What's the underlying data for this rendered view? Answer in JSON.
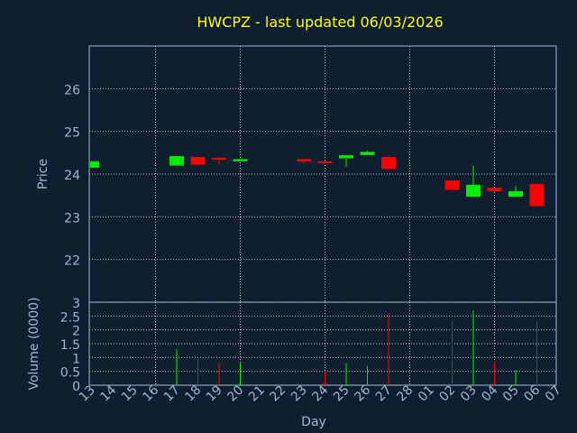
{
  "title": "HWCPZ - last updated 06/03/2026",
  "colors": {
    "background": "#0f1f30",
    "title": "#ffff00",
    "axis": "#9fb7d0",
    "up": "#00ee00",
    "down": "#ff0000"
  },
  "chart_data": [
    {
      "type": "candlestick",
      "ylabel": "Price",
      "ylim": [
        21,
        27
      ],
      "yticks": [
        "22",
        "23",
        "24",
        "25",
        "26"
      ],
      "grid": true,
      "x_labels": [
        "13",
        "14",
        "15",
        "16",
        "17",
        "18",
        "19",
        "20",
        "21",
        "22",
        "23",
        "24",
        "25",
        "26",
        "27",
        "28",
        "01",
        "02",
        "03",
        "04",
        "05",
        "06",
        "07"
      ],
      "candles": [
        {
          "x": 0,
          "open": 24.15,
          "close": 24.3,
          "high": 24.3,
          "low": 24.15
        },
        {
          "x": 4,
          "open": 24.2,
          "close": 24.42,
          "high": 24.42,
          "low": 24.2
        },
        {
          "x": 5,
          "open": 24.4,
          "close": 24.22,
          "high": 24.4,
          "low": 24.22
        },
        {
          "x": 6,
          "open": 24.38,
          "close": 24.35,
          "high": 24.38,
          "low": 24.22
        },
        {
          "x": 7,
          "open": 24.3,
          "close": 24.35,
          "high": 24.35,
          "low": 24.3
        },
        {
          "x": 10,
          "open": 24.35,
          "close": 24.3,
          "high": 24.35,
          "low": 24.25
        },
        {
          "x": 11,
          "open": 24.3,
          "close": 24.26,
          "high": 24.3,
          "low": 24.26
        },
        {
          "x": 12,
          "open": 24.37,
          "close": 24.44,
          "high": 24.44,
          "low": 24.17
        },
        {
          "x": 13,
          "open": 24.45,
          "close": 24.52,
          "high": 24.55,
          "low": 24.45
        },
        {
          "x": 14,
          "open": 24.4,
          "close": 24.12,
          "high": 24.4,
          "low": 24.12
        },
        {
          "x": 17,
          "open": 23.85,
          "close": 23.63,
          "high": 23.85,
          "low": 23.63
        },
        {
          "x": 18,
          "open": 23.47,
          "close": 23.75,
          "high": 24.2,
          "low": 23.47
        },
        {
          "x": 19,
          "open": 23.68,
          "close": 23.6,
          "high": 23.68,
          "low": 23.6
        },
        {
          "x": 20,
          "open": 23.47,
          "close": 23.6,
          "high": 23.72,
          "low": 23.47
        },
        {
          "x": 21,
          "open": 23.77,
          "close": 23.25,
          "high": 23.77,
          "low": 23.25
        }
      ]
    },
    {
      "type": "bar",
      "xlabel": "Day",
      "ylabel": "Volume (0000)",
      "ylim": [
        0,
        3
      ],
      "yticks": [
        "0",
        "0.5",
        "1",
        "1.5",
        "2",
        "2.5",
        "3"
      ],
      "bars": [
        {
          "x": 4,
          "value": 1.3,
          "direction": "up"
        },
        {
          "x": 5,
          "value": 0.95,
          "direction": "down"
        },
        {
          "x": 6,
          "value": 0.8,
          "direction": "down"
        },
        {
          "x": 7,
          "value": 0.8,
          "direction": "up"
        },
        {
          "x": 11,
          "value": 0.5,
          "direction": "down"
        },
        {
          "x": 12,
          "value": 0.8,
          "direction": "up"
        },
        {
          "x": 13,
          "value": 0.7,
          "direction": "up"
        },
        {
          "x": 14,
          "value": 2.6,
          "direction": "down"
        },
        {
          "x": 17,
          "value": 2.35,
          "direction": "down"
        },
        {
          "x": 18,
          "value": 2.7,
          "direction": "up"
        },
        {
          "x": 19,
          "value": 0.85,
          "direction": "down"
        },
        {
          "x": 20,
          "value": 0.55,
          "direction": "up"
        },
        {
          "x": 21,
          "value": 2.3,
          "direction": "down"
        }
      ]
    }
  ]
}
